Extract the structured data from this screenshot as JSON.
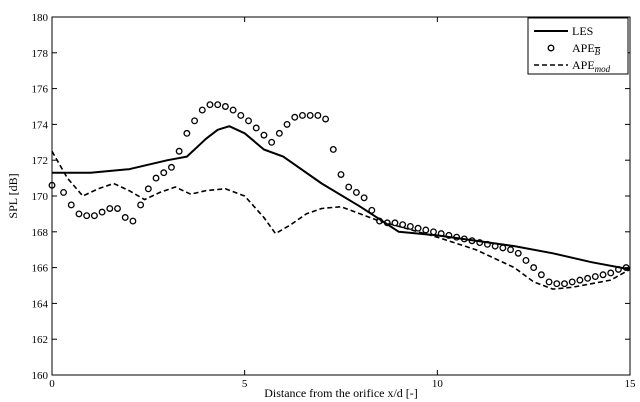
{
  "chart_data": {
    "type": "line",
    "xlabel": "Distance from the orifice x/d [-]",
    "ylabel": "SPL [dB]",
    "xlim": [
      0,
      15
    ],
    "ylim": [
      160,
      180
    ],
    "xticks": [
      0,
      5,
      10,
      15
    ],
    "yticks": [
      160,
      162,
      164,
      166,
      168,
      170,
      172,
      174,
      176,
      178,
      180
    ],
    "grid": false,
    "legend_position": "top-right",
    "series": [
      {
        "name": "LES",
        "style": "solid",
        "x": [
          0,
          1,
          2,
          3,
          3.5,
          4,
          4.3,
          4.6,
          5,
          5.5,
          6,
          7,
          8,
          9,
          10,
          11,
          12,
          13,
          14,
          15
        ],
        "y": [
          171.3,
          171.3,
          171.5,
          172.0,
          172.2,
          173.2,
          173.7,
          173.9,
          173.5,
          172.6,
          172.2,
          170.7,
          169.4,
          168.0,
          167.8,
          167.5,
          167.2,
          166.8,
          166.3,
          165.9
        ]
      },
      {
        "name": "APE",
        "name_subscript": "B",
        "style": "circles",
        "x": [
          0,
          0.3,
          0.5,
          0.7,
          0.9,
          1.1,
          1.3,
          1.5,
          1.7,
          1.9,
          2.1,
          2.3,
          2.5,
          2.7,
          2.9,
          3.1,
          3.3,
          3.5,
          3.7,
          3.9,
          4.1,
          4.3,
          4.5,
          4.7,
          4.9,
          5.1,
          5.3,
          5.5,
          5.7,
          5.9,
          6.1,
          6.3,
          6.5,
          6.7,
          6.9,
          7.1,
          7.3,
          7.5,
          7.7,
          7.9,
          8.1,
          8.3,
          8.5,
          8.7,
          8.9,
          9.1,
          9.3,
          9.5,
          9.7,
          9.9,
          10.1,
          10.3,
          10.5,
          10.7,
          10.9,
          11.1,
          11.3,
          11.5,
          11.7,
          11.9,
          12.1,
          12.3,
          12.5,
          12.7,
          12.9,
          13.1,
          13.3,
          13.5,
          13.7,
          13.9,
          14.1,
          14.3,
          14.5,
          14.7,
          14.9
        ],
        "y": [
          170.6,
          170.2,
          169.5,
          169.0,
          168.9,
          168.9,
          169.1,
          169.3,
          169.3,
          168.8,
          168.6,
          169.5,
          170.4,
          171.0,
          171.3,
          171.6,
          172.5,
          173.5,
          174.2,
          174.8,
          175.1,
          175.1,
          175.0,
          174.8,
          174.5,
          174.2,
          173.8,
          173.4,
          173.0,
          173.5,
          174.0,
          174.4,
          174.5,
          174.5,
          174.5,
          174.3,
          172.6,
          171.2,
          170.5,
          170.2,
          169.9,
          169.2,
          168.6,
          168.5,
          168.5,
          168.4,
          168.3,
          168.2,
          168.1,
          168.0,
          167.9,
          167.8,
          167.7,
          167.6,
          167.5,
          167.4,
          167.3,
          167.2,
          167.1,
          167.0,
          166.8,
          166.4,
          166.0,
          165.6,
          165.2,
          165.1,
          165.1,
          165.2,
          165.3,
          165.4,
          165.5,
          165.6,
          165.7,
          165.9,
          166.0
        ]
      },
      {
        "name": "APE",
        "name_subscript": "mod",
        "style": "dashed",
        "x": [
          0,
          0.4,
          0.8,
          1.2,
          1.6,
          2.0,
          2.4,
          2.8,
          3.2,
          3.6,
          4.0,
          4.5,
          5.0,
          5.5,
          5.8,
          6.2,
          6.6,
          7.0,
          7.5,
          8.0,
          8.5,
          9.0,
          10.0,
          11.0,
          12.0,
          12.5,
          13.0,
          13.5,
          14.0,
          14.5,
          15.0
        ],
        "y": [
          172.5,
          171.0,
          170.0,
          170.4,
          170.7,
          170.3,
          169.8,
          170.2,
          170.5,
          170.1,
          170.3,
          170.4,
          170.0,
          168.8,
          167.9,
          168.4,
          169.0,
          169.3,
          169.4,
          169.0,
          168.6,
          168.3,
          167.7,
          167.0,
          166.0,
          165.2,
          164.8,
          164.9,
          165.1,
          165.3,
          165.9
        ]
      }
    ]
  }
}
